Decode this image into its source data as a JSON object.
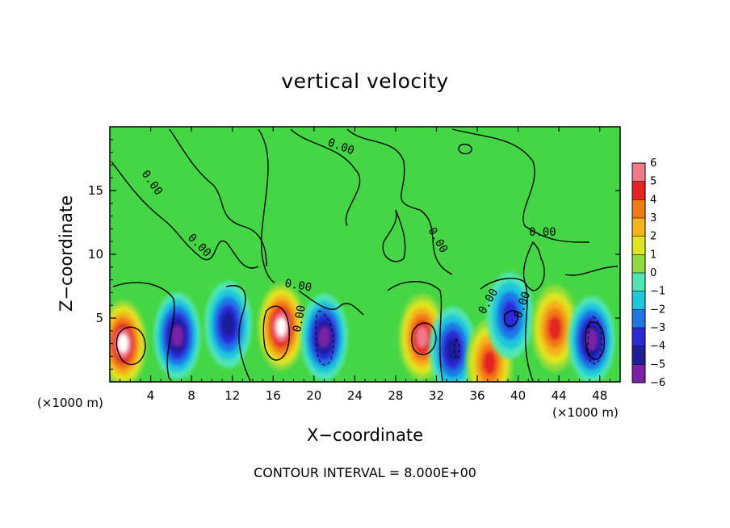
{
  "chart_data": {
    "type": "heatmap",
    "title": "vertical velocity",
    "xlabel": "X−coordinate",
    "ylabel": "Z−coordinate",
    "x_unit": "(×1000 m)",
    "x_unit_right": "(×1000 m)",
    "footer": "CONTOUR INTERVAL = 8.000E+00",
    "xlim": [
      0,
      50
    ],
    "ylim": [
      0,
      20
    ],
    "x_ticks": [
      4,
      8,
      12,
      16,
      20,
      24,
      28,
      32,
      36,
      40,
      44,
      48
    ],
    "x_tick_labels": [
      "4",
      "8",
      "12",
      "16",
      "20",
      "24",
      "28",
      "32",
      "36",
      "40",
      "44",
      "48"
    ],
    "y_ticks": [
      5,
      10,
      15
    ],
    "y_tick_labels": [
      "5",
      "10",
      "15"
    ],
    "colorbar": {
      "levels": [
        -6,
        -5,
        -4,
        -3,
        -2,
        -1,
        0,
        1,
        2,
        3,
        4,
        5,
        6
      ],
      "level_labels": [
        "−6",
        "−5",
        "−4",
        "−3",
        "−2",
        "−1",
        "0",
        "1",
        "2",
        "3",
        "4",
        "5",
        "6"
      ],
      "colors": [
        "#7a20a8",
        "#1e1e9a",
        "#2a2ad8",
        "#1f78e6",
        "#1ec8dc",
        "#4fe6b4",
        "#43d64a",
        "#8edc3a",
        "#dfe61e",
        "#f5b21a",
        "#f07a14",
        "#e62222",
        "#f07a8c"
      ],
      "overflow_color": "#ffffff"
    },
    "contour_labels": [
      "0.00",
      "0.00",
      "0.00",
      "0.00",
      "0.00",
      "0.00",
      "0.00",
      "0.00",
      "0.00"
    ],
    "background_color": "#45d645",
    "cells": [
      {
        "x": 1.3,
        "z": 3.0,
        "v": 7
      },
      {
        "x": 6.6,
        "z": 3.6,
        "v": -6
      },
      {
        "x": 11.6,
        "z": 4.5,
        "v": -5
      },
      {
        "x": 16.8,
        "z": 4.3,
        "v": 7
      },
      {
        "x": 21.0,
        "z": 3.5,
        "v": -6
      },
      {
        "x": 30.6,
        "z": 3.5,
        "v": 6
      },
      {
        "x": 33.6,
        "z": 2.5,
        "v": -5
      },
      {
        "x": 37.2,
        "z": 1.5,
        "v": 5
      },
      {
        "x": 39.2,
        "z": 5.2,
        "v": -4
      },
      {
        "x": 43.6,
        "z": 4.2,
        "v": 5
      },
      {
        "x": 47.2,
        "z": 3.3,
        "v": -6
      }
    ]
  }
}
